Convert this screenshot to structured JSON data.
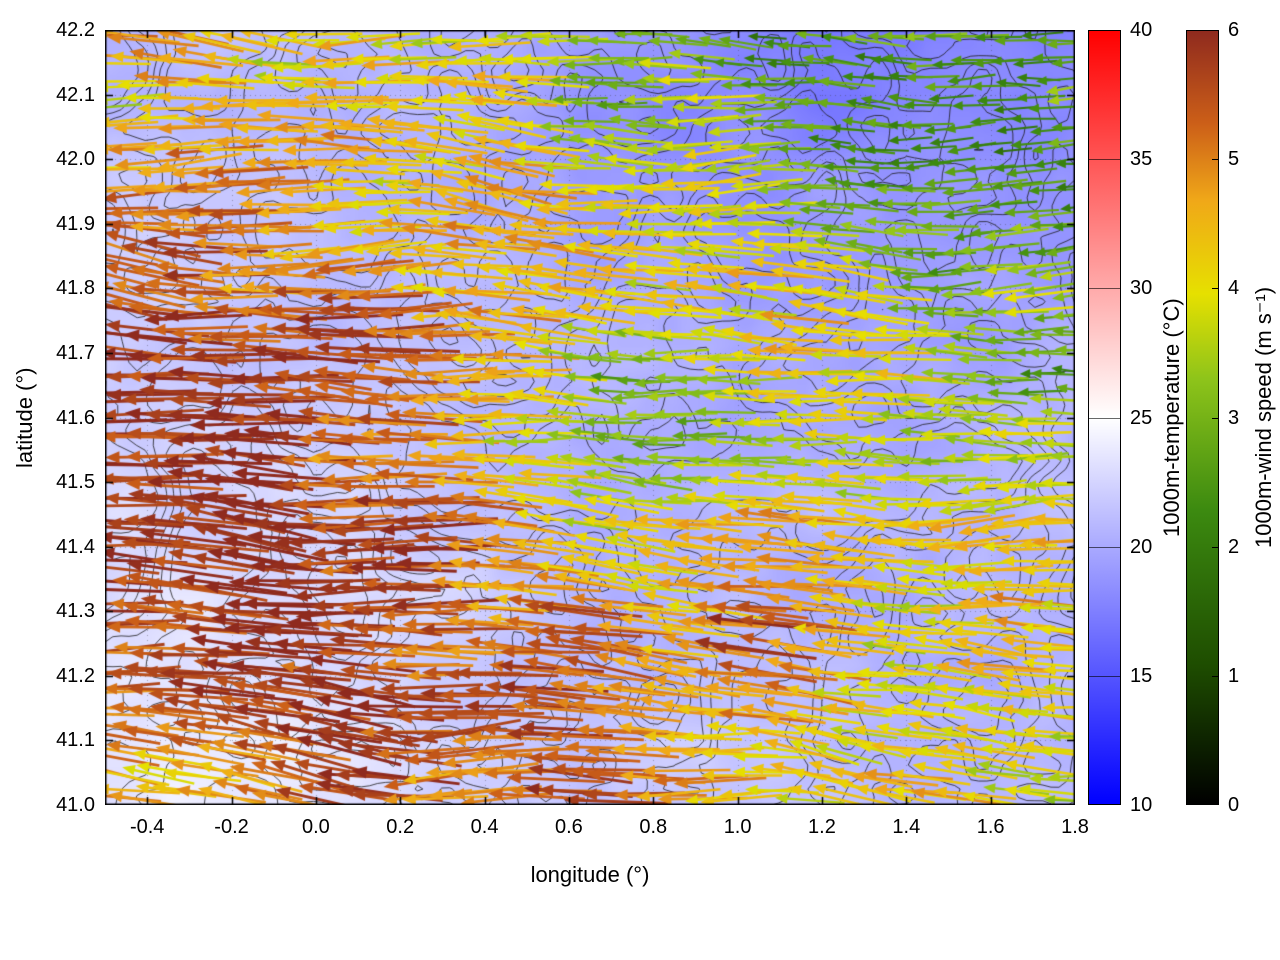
{
  "figure": {
    "background": "#ffffff"
  },
  "chart_data": {
    "type": "vector_field",
    "title": "",
    "xlabel": "longitude (°)",
    "ylabel": "latitude (°)",
    "x_range": [
      -0.5,
      1.8
    ],
    "y_range": [
      41.0,
      42.2
    ],
    "x_ticks": [
      -0.4,
      -0.2,
      0.0,
      0.2,
      0.4,
      0.6,
      0.8,
      1.0,
      1.2,
      1.4,
      1.6,
      1.8
    ],
    "y_ticks": [
      41.0,
      41.1,
      41.2,
      41.3,
      41.4,
      41.5,
      41.6,
      41.7,
      41.8,
      41.9,
      42.0,
      42.1,
      42.2
    ],
    "grid": "faint dotted lines at major ticks",
    "layers": [
      "1000 m temperature field shaded with blue-white-red palette (mostly 17-24 °C, whiter in southwest, bluer in northeast)",
      "thin black unlabeled terrain contour lines over the whole map",
      "dense wind-vector arrows colored by 1000 m wind speed; arrows point toward the west (easterly flow); length proportional to speed; dark-red fast arrows dominate the west, yellow/orange in the center, green slower arrows in the northeast"
    ],
    "colorbars": [
      {
        "id": "temperature",
        "label": "1000m-temperature (°C)",
        "range": [
          10,
          40
        ],
        "ticks": [
          10,
          15,
          20,
          25,
          30,
          35,
          40
        ],
        "stops": [
          {
            "t": 0.0,
            "color": "#0000ff"
          },
          {
            "t": 0.5,
            "color": "#ffffff"
          },
          {
            "t": 1.0,
            "color": "#ff0000"
          }
        ]
      },
      {
        "id": "wind_speed",
        "label": "1000m-wind speed (m s⁻¹)",
        "range": [
          0,
          6
        ],
        "ticks": [
          0,
          1,
          2,
          3,
          4,
          5,
          6
        ],
        "stops": [
          {
            "t": 0.0,
            "color": "#000000"
          },
          {
            "t": 0.18,
            "color": "#1e4d00"
          },
          {
            "t": 0.38,
            "color": "#3c8a10"
          },
          {
            "t": 0.55,
            "color": "#8ec41a"
          },
          {
            "t": 0.66,
            "color": "#e6e000"
          },
          {
            "t": 0.78,
            "color": "#f0a818"
          },
          {
            "t": 0.88,
            "color": "#cc5f18"
          },
          {
            "t": 1.0,
            "color": "#8f2a1e"
          }
        ]
      }
    ],
    "temperature_grid_c": {
      "lon": [
        -0.4,
        -0.1,
        0.2,
        0.5,
        0.8,
        1.1,
        1.4,
        1.7
      ],
      "lat": [
        41.1,
        41.3,
        41.5,
        41.7,
        41.9,
        42.1
      ],
      "values": [
        [
          23.5,
          23.8,
          23.0,
          22.0,
          21.5,
          21.0,
          21.0,
          21.0
        ],
        [
          23.0,
          23.2,
          22.5,
          21.5,
          21.0,
          20.5,
          20.5,
          20.8
        ],
        [
          22.5,
          22.5,
          22.0,
          21.0,
          20.5,
          20.5,
          20.0,
          20.5
        ],
        [
          22.0,
          21.8,
          21.5,
          20.8,
          20.5,
          20.0,
          19.5,
          20.0
        ],
        [
          21.5,
          21.5,
          21.0,
          20.5,
          19.5,
          19.0,
          18.5,
          18.5
        ],
        [
          21.0,
          21.0,
          20.5,
          19.5,
          18.5,
          18.0,
          17.5,
          17.8
        ]
      ]
    },
    "wind_speed_grid_ms": {
      "lon": [
        -0.4,
        -0.1,
        0.2,
        0.5,
        0.8,
        1.1,
        1.4,
        1.7
      ],
      "lat": [
        41.1,
        41.3,
        41.5,
        41.7,
        41.9,
        42.1
      ],
      "values": [
        [
          4.8,
          5.2,
          5.6,
          5.5,
          4.6,
          4.2,
          4.1,
          4.0
        ],
        [
          5.2,
          5.8,
          5.8,
          5.6,
          4.8,
          5.2,
          4.3,
          4.1
        ],
        [
          5.8,
          5.8,
          5.7,
          4.6,
          3.4,
          4.4,
          4.2,
          3.6
        ],
        [
          5.6,
          5.6,
          4.8,
          4.2,
          3.2,
          4.0,
          3.7,
          3.3
        ],
        [
          5.0,
          4.9,
          4.5,
          4.3,
          3.6,
          3.4,
          3.1,
          2.9
        ],
        [
          4.2,
          4.3,
          4.1,
          3.8,
          3.3,
          2.9,
          2.7,
          2.6
        ]
      ]
    },
    "wind_direction_note": "arrows point toward the west-southwest with small directional scatter"
  }
}
